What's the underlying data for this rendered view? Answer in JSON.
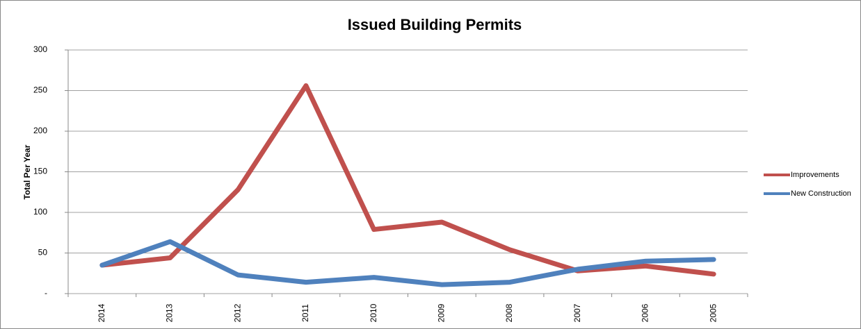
{
  "chart_data": {
    "type": "line",
    "title": "Issued Building Permits",
    "y_label": "Total Per Year",
    "categories": [
      "2014",
      "2013",
      "2012",
      "2011",
      "2010",
      "2009",
      "2008",
      "2007",
      "2006",
      "2005"
    ],
    "series": [
      {
        "name": "Improvements",
        "color": "#c0504d",
        "values": [
          35,
          44,
          128,
          256,
          79,
          88,
          54,
          28,
          34,
          24
        ]
      },
      {
        "name": "New Construction",
        "color": "#4f81bd",
        "values": [
          35,
          64,
          23,
          14,
          20,
          11,
          14,
          30,
          40,
          42
        ]
      }
    ],
    "ylim": [
      0,
      300
    ],
    "yticks": [
      {
        "value": 0,
        "label": "-"
      },
      50,
      100,
      150,
      200,
      250,
      300
    ],
    "grid": true,
    "legend": "right"
  }
}
